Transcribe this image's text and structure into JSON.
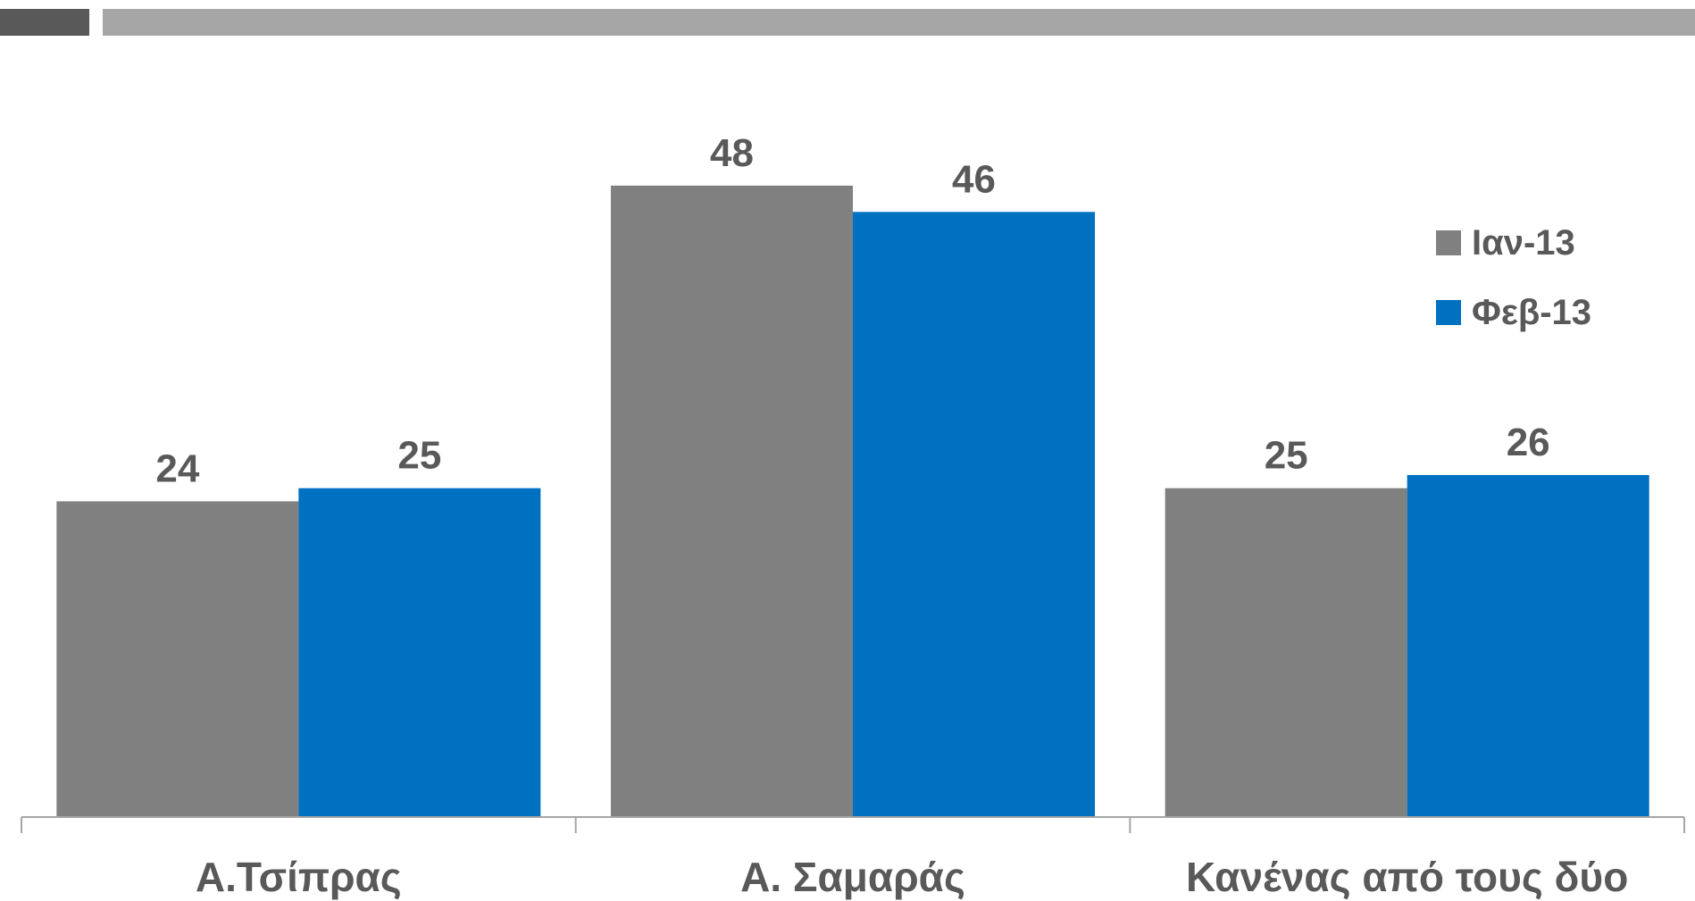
{
  "colors": {
    "header_dark": "#595959",
    "header_light": "#a6a6a6",
    "axis": "#a6a6a6"
  },
  "chart_data": {
    "type": "bar",
    "title": "",
    "xlabel": "",
    "ylabel": "",
    "ylim": [
      0,
      56
    ],
    "grid": false,
    "legend_position": "top-right",
    "categories": [
      "Α.Τσίπρας",
      "Α. Σαμαράς",
      "Κανένας από τους δύο"
    ],
    "series": [
      {
        "name": "Ιαν-13",
        "color": "#808080",
        "values": [
          24,
          48,
          25
        ]
      },
      {
        "name": "Φεβ-13",
        "color": "#0070c0",
        "values": [
          25,
          46,
          26
        ]
      }
    ]
  }
}
